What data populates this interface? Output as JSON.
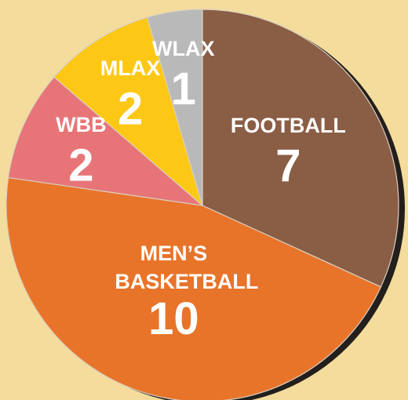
{
  "chart_data": {
    "type": "pie",
    "categories": [
      "FOOTBALL",
      "MEN’S BASKETBALL",
      "WBB",
      "MLAX",
      "WLAX"
    ],
    "values": [
      7,
      10,
      2,
      2,
      1
    ],
    "colors": [
      "#8a5d45",
      "#e8742a",
      "#e77577",
      "#fdc815",
      "#b9b9b9"
    ]
  }
}
